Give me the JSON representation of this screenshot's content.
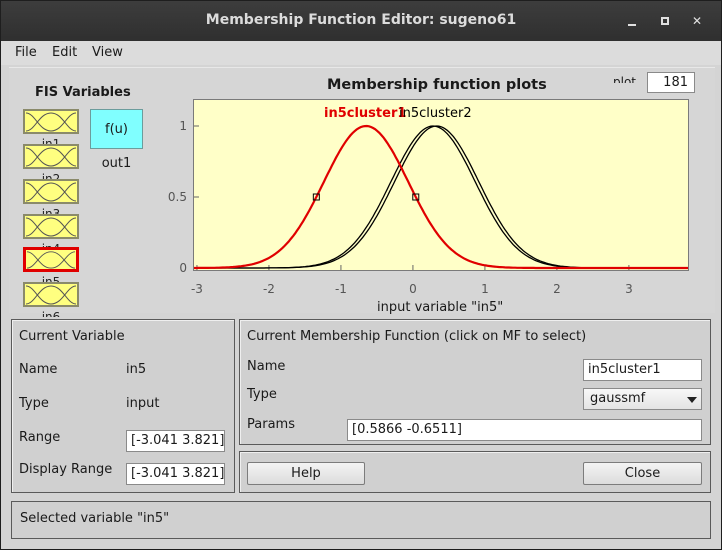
{
  "window": {
    "title": "Membership Function Editor: sugeno61"
  },
  "menu": [
    "File",
    "Edit",
    "View"
  ],
  "fis": {
    "heading": "FIS Variables",
    "inputs": [
      {
        "label": "in1",
        "selected": false
      },
      {
        "label": "in2",
        "selected": false
      },
      {
        "label": "in3",
        "selected": false
      },
      {
        "label": "in4",
        "selected": false
      },
      {
        "label": "in5",
        "selected": true
      },
      {
        "label": "in6",
        "selected": false
      }
    ],
    "output": {
      "block_text": "f(u)",
      "label": "out1"
    }
  },
  "plot": {
    "title": "Membership function plots",
    "points_label": "plot points:",
    "points_value": "181",
    "xlabel": "input variable \"in5\"",
    "mf_labels": [
      "in5cluster1",
      "in5cluster2"
    ],
    "colors": {
      "selected": "#e00000",
      "other": "#000000",
      "background": "#ffffc8"
    }
  },
  "chart_data": {
    "type": "line",
    "title": "Membership function plots",
    "xlabel": "input variable \"in5\"",
    "ylabel": "",
    "xlim": [
      -3.041,
      3.821
    ],
    "ylim": [
      0,
      1
    ],
    "xticks": [
      -3,
      -2,
      -1,
      0,
      1,
      2,
      3
    ],
    "yticks": [
      0,
      0.5,
      1
    ],
    "series": [
      {
        "name": "in5cluster1",
        "function": "gaussmf",
        "params": [
          0.5866,
          -0.6511
        ],
        "color": "#e00000",
        "selected": true
      },
      {
        "name": "in5cluster2",
        "function": "gaussmf",
        "params": [
          0.5866,
          0.28
        ],
        "color": "#000000",
        "selected": false
      },
      {
        "function": "gaussmf",
        "params": [
          0.5866,
          0.33
        ],
        "color": "#000000",
        "selected": false
      }
    ]
  },
  "current_variable": {
    "heading": "Current Variable",
    "name_label": "Name",
    "name_value": "in5",
    "type_label": "Type",
    "type_value": "input",
    "range_label": "Range",
    "range_value": "[-3.041 3.821]",
    "display_range_label": "Display Range",
    "display_range_value": "[-3.041 3.821]"
  },
  "current_mf": {
    "heading": "Current Membership Function (click on MF to select)",
    "name_label": "Name",
    "name_value": "in5cluster1",
    "type_label": "Type",
    "type_value": "gaussmf",
    "params_label": "Params",
    "params_value": "[0.5866 -0.6511]"
  },
  "buttons": {
    "help": "Help",
    "close": "Close"
  },
  "status": "Selected variable \"in5\""
}
